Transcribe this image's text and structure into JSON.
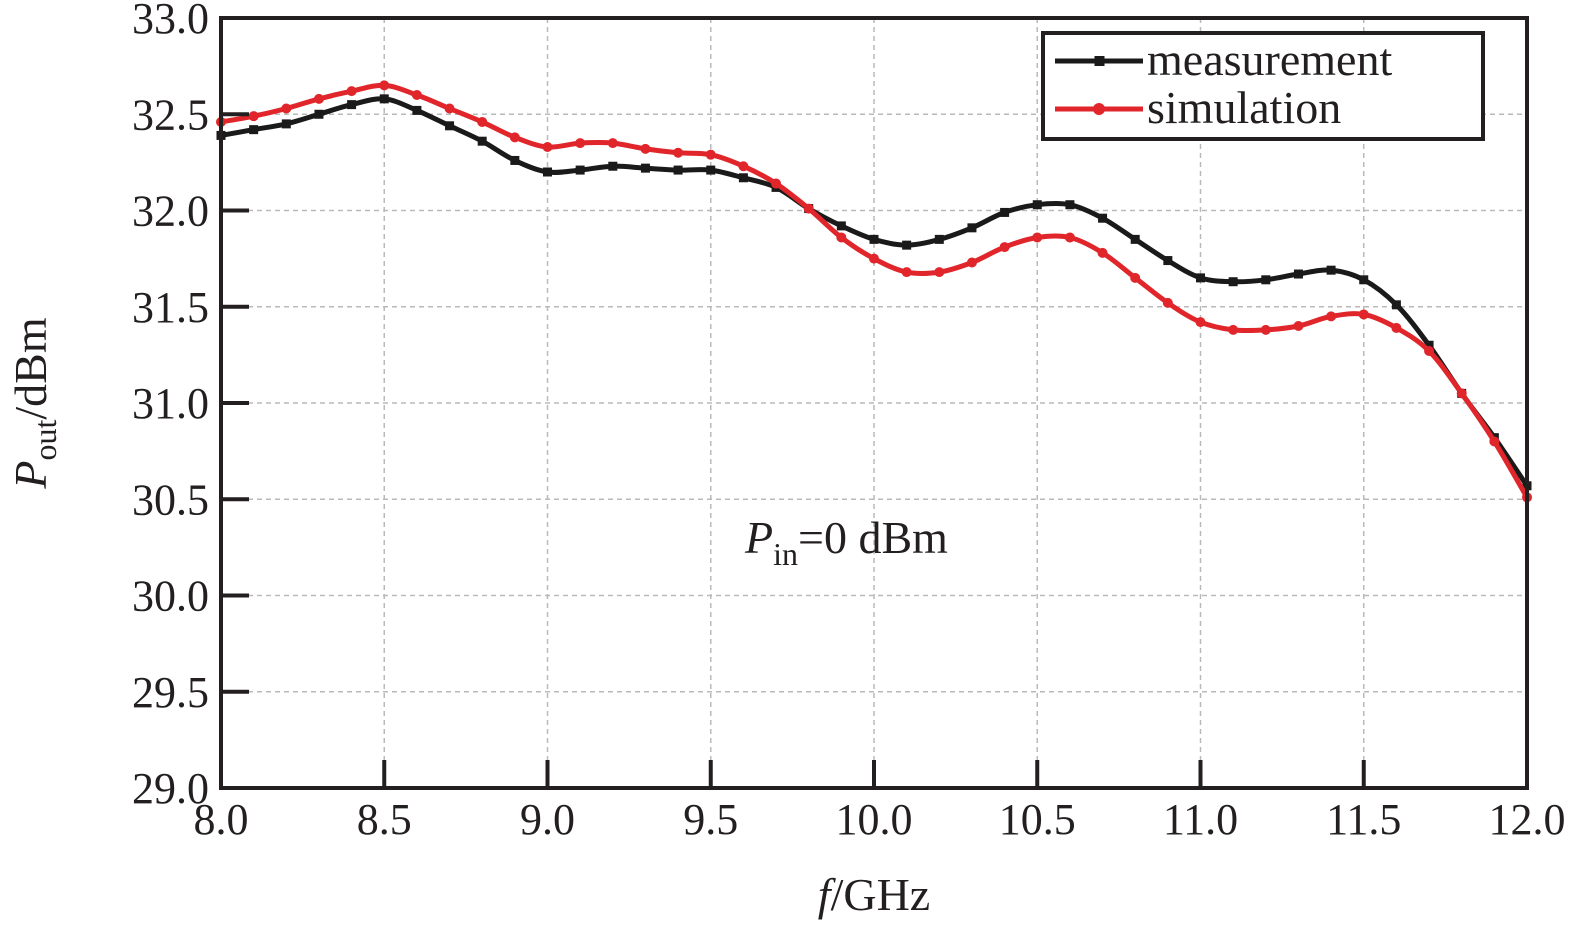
{
  "chart_data": {
    "type": "line",
    "xlabel": {
      "italic": "f",
      "rest": "/GHz"
    },
    "ylabel": {
      "italic": "P",
      "sub": "out",
      "rest": "/dBm"
    },
    "xlim": [
      8.0,
      12.0
    ],
    "ylim": [
      29.0,
      33.0
    ],
    "xticks": [
      "8.0",
      "8.5",
      "9.0",
      "9.5",
      "10.0",
      "10.5",
      "11.0",
      "11.5",
      "12.0"
    ],
    "yticks": [
      "29.0",
      "29.5",
      "30.0",
      "30.5",
      "31.0",
      "31.5",
      "32.0",
      "32.5",
      "33.0"
    ],
    "grid": true,
    "legend_position": "top-right",
    "annotation": {
      "italic": "P",
      "sub": "in",
      "rest": "=0 dBm"
    },
    "x": [
      8.0,
      8.1,
      8.2,
      8.3,
      8.4,
      8.5,
      8.6,
      8.7,
      8.8,
      8.9,
      9.0,
      9.1,
      9.2,
      9.3,
      9.4,
      9.5,
      9.6,
      9.7,
      9.8,
      9.9,
      10.0,
      10.1,
      10.2,
      10.3,
      10.4,
      10.5,
      10.6,
      10.7,
      10.8,
      10.9,
      11.0,
      11.1,
      11.2,
      11.3,
      11.4,
      11.5,
      11.6,
      11.7,
      11.8,
      11.9,
      12.0
    ],
    "series": [
      {
        "name": "measurement",
        "color": "#1a1a1a",
        "marker": "square",
        "values": [
          32.39,
          32.42,
          32.45,
          32.5,
          32.55,
          32.58,
          32.52,
          32.44,
          32.36,
          32.26,
          32.2,
          32.21,
          32.23,
          32.22,
          32.21,
          32.21,
          32.17,
          32.12,
          32.01,
          31.92,
          31.85,
          31.82,
          31.85,
          31.91,
          31.99,
          32.03,
          32.03,
          31.96,
          31.85,
          31.74,
          31.65,
          31.63,
          31.64,
          31.67,
          31.69,
          31.64,
          31.51,
          31.3,
          31.05,
          30.82,
          30.57
        ]
      },
      {
        "name": "simulation",
        "color": "#e0262b",
        "marker": "circle",
        "values": [
          32.46,
          32.49,
          32.53,
          32.58,
          32.62,
          32.65,
          32.6,
          32.53,
          32.46,
          32.38,
          32.33,
          32.35,
          32.35,
          32.32,
          32.3,
          32.29,
          32.23,
          32.14,
          32.01,
          31.86,
          31.75,
          31.68,
          31.68,
          31.73,
          31.81,
          31.86,
          31.86,
          31.78,
          31.65,
          31.52,
          31.42,
          31.38,
          31.38,
          31.4,
          31.45,
          31.46,
          31.39,
          31.27,
          31.05,
          30.8,
          30.51
        ]
      }
    ]
  }
}
